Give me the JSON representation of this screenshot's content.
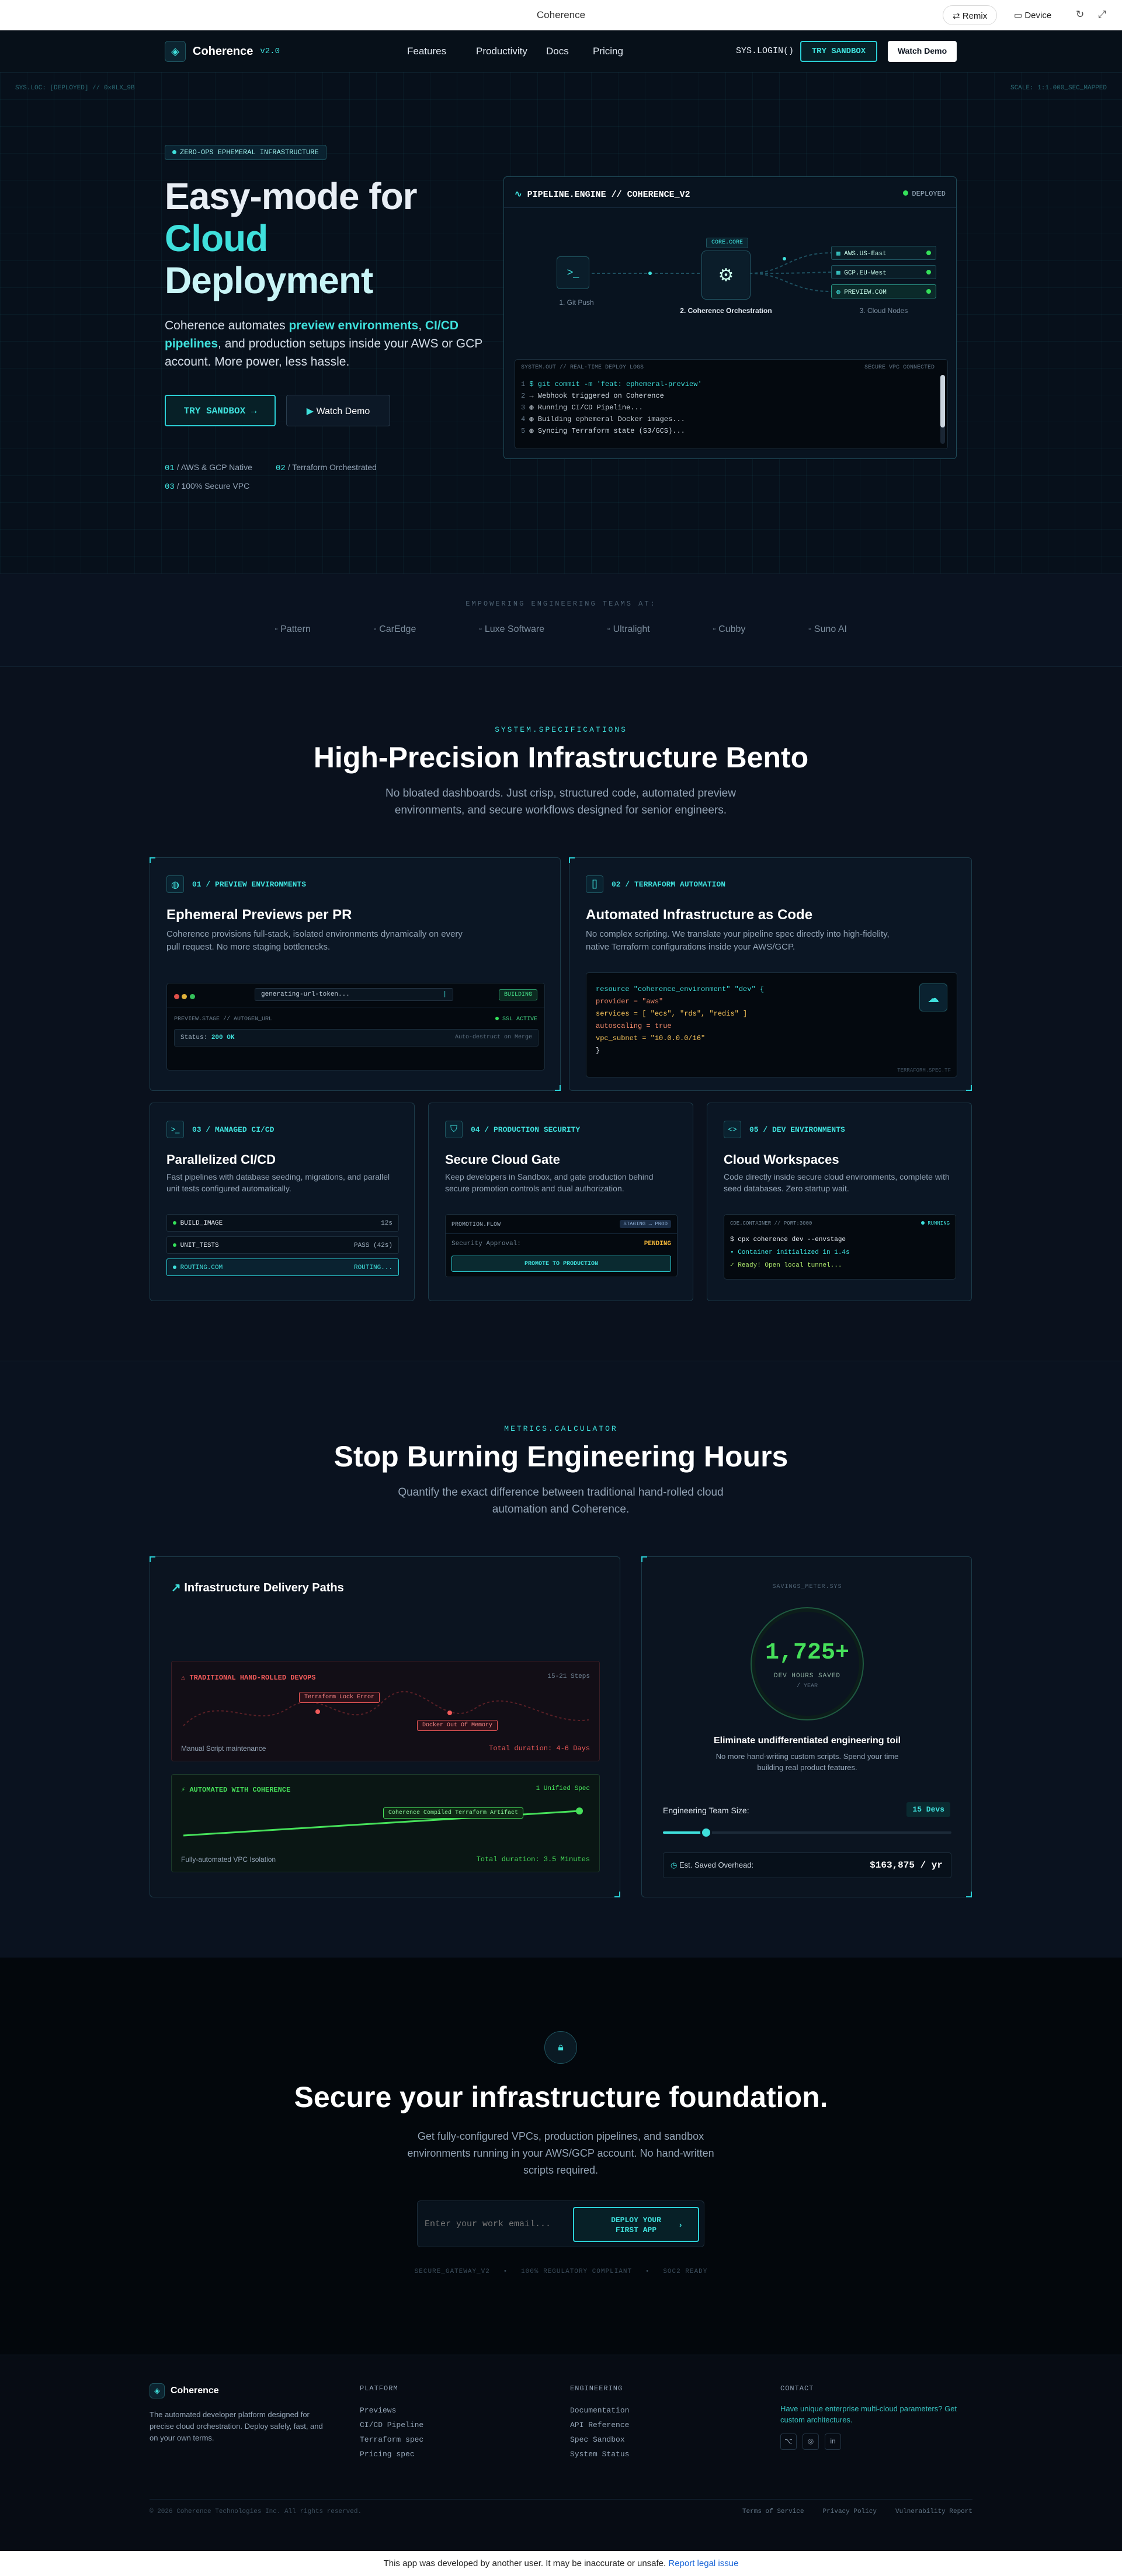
{
  "topbar": {
    "title": "Coherence",
    "remix": "Remix",
    "device": "Device"
  },
  "nav": {
    "brand": "Coherence",
    "version": "v2.0",
    "links": [
      "Features",
      "Productivity",
      "Docs",
      "Pricing"
    ],
    "login": "SYS.LOGIN()",
    "sandbox": "TRY SANDBOX",
    "demo": "Watch Demo"
  },
  "hero": {
    "coords_left": "SYS.LOC: [DEPLOYED] // 0x0LX_9B",
    "coords_right": "SCALE: 1:1.000_SEC_MAPPED",
    "badge": "ZERO-OPS EPHEMERAL INFRASTRUCTURE",
    "title_1": "Easy-mode for",
    "title_2": "Cloud",
    "title_3": "Deployment",
    "desc_1": "Coherence automates ",
    "desc_hl1": "preview environments",
    "desc_2": ", ",
    "desc_hl2": "CI/CD pipelines",
    "desc_3": ", and production setups inside your AWS or GCP account. More power, less hassle.",
    "cta_sandbox": "TRY SANDBOX",
    "cta_demo": "Watch Demo",
    "features": [
      {
        "num": "01",
        "text": "AWS & GCP Native"
      },
      {
        "num": "02",
        "text": "Terraform Orchestrated"
      },
      {
        "num": "03",
        "text": "100% Secure VPC"
      }
    ]
  },
  "pipeline": {
    "title": "PIPELINE.ENGINE // COHERENCE_V2",
    "status": "DEPLOYED",
    "step1": "1. Git Push",
    "core_label": "CORE.CORE",
    "step2": "2. Coherence Orchestration",
    "nodes": [
      "AWS.US-East",
      "GCP.EU-West",
      "PREVIEW.COM"
    ],
    "step3": "3. Cloud Nodes",
    "log_header_left": "SYSTEM.OUT // REAL-TIME DEPLOY LOGS",
    "log_header_right": "SECURE VPC CONNECTED",
    "logs": [
      "$ git commit -m 'feat: ephemeral-preview'",
      "→ Webhook triggered on Coherence",
      "Running CI/CD Pipeline...",
      "Building ephemeral Docker images...",
      "Syncing Terraform state (S3/GCS)..."
    ]
  },
  "trusted": {
    "label": "EMPOWERING ENGINEERING TEAMS AT:",
    "logos": [
      "Pattern",
      "CarEdge",
      "Luxe Software",
      "Ultralight",
      "Cubby",
      "Suno AI"
    ]
  },
  "bento": {
    "tag": "SYSTEM.SPECIFICATIONS",
    "title": "High-Precision Infrastructure Bento",
    "sub": "No bloated dashboards. Just crisp, structured code, automated preview environments, and secure workflows designed for senior engineers.",
    "c1": {
      "tag": "01 / PREVIEW ENVIRONMENTS",
      "title": "Ephemeral Previews per PR",
      "desc": "Coherence provisions full-stack, isolated environments dynamically on every pull request. No more staging bottlenecks.",
      "url": "generating-url-token...",
      "badge": "BUILDING",
      "row_label": "PREVIEW.STAGE // AUTOGEN_URL",
      "row_status": "SSL ACTIVE",
      "status_label": "Status:",
      "status_val": "200 OK",
      "status_right": "Auto-destruct on Merge"
    },
    "c2": {
      "tag": "02 / TERRAFORM AUTOMATION",
      "title": "Automated Infrastructure as Code",
      "desc": "No complex scripting. We translate your pipeline spec directly into high-fidelity, native Terraform configurations inside your AWS/GCP.",
      "code": [
        "resource \"coherence_environment\" \"dev\" {",
        "  provider = \"aws\"",
        "  services = [ \"ecs\", \"rds\", \"redis\" ]",
        "  autoscaling = true",
        "  vpc_subnet = \"10.0.0.0/16\"",
        "}"
      ],
      "foot": "TERRAFORM.SPEC.TF"
    },
    "c3": {
      "tag": "03 / MANAGED CI/CD",
      "title": "Parallelized CI/CD",
      "desc": "Fast pipelines with database seeding, migrations, and parallel unit tests configured automatically.",
      "rows": [
        {
          "name": "BUILD_IMAGE",
          "val": "12s"
        },
        {
          "name": "UNIT_TESTS",
          "val": "PASS (42s)"
        },
        {
          "name": "ROUTING.COM",
          "val": "ROUTING..."
        }
      ]
    },
    "c4": {
      "tag": "04 / PRODUCTION SECURITY",
      "title": "Secure Cloud Gate",
      "desc": "Keep developers in Sandbox, and gate production behind secure promotion controls and dual authorization.",
      "flow": "PROMOTION.FLOW",
      "flow_badge": "STAGING → PROD",
      "approval": "Security Approval:",
      "approval_val": "PENDING",
      "button": "PROMOTE TO PRODUCTION"
    },
    "c5": {
      "tag": "05 / DEV ENVIRONMENTS",
      "title": "Cloud Workspaces",
      "desc": "Code directly inside secure cloud environments, complete with seed databases. Zero startup wait.",
      "head": "CDE.CONTAINER // PORT:3000",
      "badge": "RUNNING",
      "lines": [
        "$ cpx coherence dev --envstage",
        "• Container initialized in 1.4s",
        "✓ Ready! Open local tunnel..."
      ]
    }
  },
  "metrics": {
    "tag": "METRICS.CALCULATOR",
    "title": "Stop Burning Engineering Hours",
    "sub": "Quantify the exact difference between traditional hand-rolled cloud automation and Coherence.",
    "left_title": "Infrastructure Delivery Paths",
    "trad_label": "TRADITIONAL HAND-ROLLED DEVOPS",
    "trad_steps": "15-21 Steps",
    "trad_err1": "Terraform Lock Error",
    "trad_err2": "Docker Out Of Memory",
    "trad_foot_left": "Manual Script maintenance",
    "trad_foot_right": "Total duration: 4-6 Days",
    "auto_label": "AUTOMATED WITH COHERENCE",
    "auto_steps": "1 Unified Spec",
    "auto_mid": "Coherence Compiled Terraform Artifact",
    "auto_foot_left": "Fully-automated VPC Isolation",
    "auto_foot_right": "Total duration: 3.5 Minutes",
    "meter": "SAVINGS_METER.SYS",
    "hours": "1,725+",
    "hours_unit": "DEV HOURS SAVED",
    "hours_per": "/ YEAR",
    "headline": "Eliminate undifferentiated engineering toil",
    "body": "No more hand-writing custom scripts. Spend your time building real product features.",
    "team_label": "Engineering Team Size:",
    "team_val": "15 Devs",
    "slider_fraction": 0.15,
    "overhead_label": "Est. Saved Overhead:",
    "overhead_val": "$163,875 / yr"
  },
  "cta": {
    "title": "Secure your infrastructure foundation.",
    "sub": "Get fully-configured VPCs, production pipelines, and sandbox environments running in your AWS/GCP account. No hand-written scripts required.",
    "placeholder": "Enter your work email...",
    "button": "DEPLOY YOUR FIRST APP",
    "meta": [
      "SECURE_GATEWAY_V2",
      "100% REGULATORY COMPLIANT",
      "SOC2 READY"
    ]
  },
  "footer": {
    "brand": "Coherence",
    "desc": "The automated developer platform designed for precise cloud orchestration. Deploy safely, fast, and on your own terms.",
    "cols": [
      {
        "title": "PLATFORM",
        "links": [
          "Previews",
          "CI/CD Pipeline",
          "Terraform spec",
          "Pricing spec"
        ]
      },
      {
        "title": "ENGINEERING",
        "links": [
          "Documentation",
          "API Reference",
          "Spec Sandbox",
          "System Status"
        ]
      }
    ],
    "contact_title": "CONTACT",
    "contact_text": "Have unique enterprise multi-cloud parameters? Get custom architectures.",
    "copyright": "© 2026 Coherence Technologies Inc. All rights reserved.",
    "legal": [
      "Terms of Service",
      "Privacy Policy",
      "Vulnerability Report"
    ]
  },
  "banner": {
    "text": "This app was developed by another user. It may be inaccurate or unsafe.",
    "link": "Report legal issue"
  }
}
